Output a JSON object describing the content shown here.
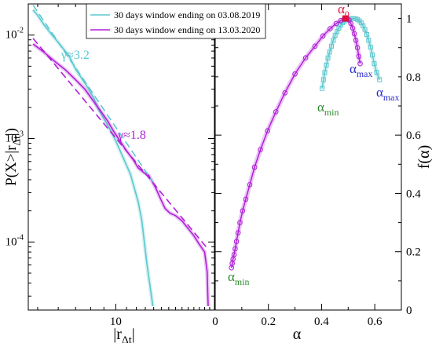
{
  "colors": {
    "cyan": "#5bc8d0",
    "magenta": "#b020d8",
    "green": "#2e8b2e",
    "blue": "#2b2bd0",
    "red": "#e0103a"
  },
  "legend": [
    {
      "label": "30 days window ending on 03.08.2019",
      "color": "#5bc8d0"
    },
    {
      "label": "30 days window ending on 13.03.2020",
      "color": "#b020d8"
    }
  ],
  "chart_data": [
    {
      "type": "line",
      "xscale": "log",
      "yscale": "log",
      "xlabel": "|r",
      "xlabel_sub": "Δt",
      "xlabel_end": "|",
      "ylabel": "P(X>|r",
      "ylabel_sub": "Δt",
      "ylabel_end": "|)",
      "xlim": [
        4.6,
        24
      ],
      "ylim": [
        2.2e-05,
        0.02
      ],
      "xticks": [
        10
      ],
      "yticks": [
        {
          "value": 0.01,
          "base": "10",
          "exp": "-2"
        },
        {
          "value": 0.001,
          "base": "10",
          "exp": "-3"
        },
        {
          "value": 0.0001,
          "base": "10",
          "exp": "-4"
        }
      ],
      "annotations": [
        {
          "text": "γ≈3.2",
          "color": "#5bc8d0"
        },
        {
          "text": "γ≈1.8",
          "color": "#b020d8"
        }
      ],
      "series": [
        {
          "color": "#5bc8d0",
          "points": [
            [
              4.8,
              0.0175
            ],
            [
              5.0,
              0.0155
            ],
            [
              5.3,
              0.0125
            ],
            [
              5.6,
              0.0105
            ],
            [
              6.0,
              0.0085
            ],
            [
              6.3,
              0.0073
            ],
            [
              6.6,
              0.0063
            ],
            [
              7.0,
              0.0047
            ],
            [
              7.4,
              0.0038
            ],
            [
              7.8,
              0.0031
            ],
            [
              8.2,
              0.0025
            ],
            [
              8.6,
              0.0019
            ],
            [
              9.0,
              0.00155
            ],
            [
              9.5,
              0.00122
            ],
            [
              10.0,
              0.00095
            ],
            [
              10.5,
              0.00072
            ],
            [
              11.0,
              0.00055
            ],
            [
              11.4,
              0.00045
            ],
            [
              11.8,
              0.00033
            ],
            [
              12.2,
              0.000245
            ],
            [
              12.6,
              0.00016
            ],
            [
              12.9,
              9.8e-05
            ],
            [
              13.2,
              6e-05
            ],
            [
              13.5,
              4e-05
            ],
            [
              13.9,
              2.4e-05
            ]
          ]
        },
        {
          "color": "#b020d8",
          "points": [
            [
              4.8,
              0.0082
            ],
            [
              5.3,
              0.0068
            ],
            [
              5.8,
              0.0056
            ],
            [
              6.4,
              0.0046
            ],
            [
              7.0,
              0.0037
            ],
            [
              7.6,
              0.003
            ],
            [
              8.2,
              0.0023
            ],
            [
              8.8,
              0.0018
            ],
            [
              9.3,
              0.00148
            ],
            [
              9.8,
              0.00118
            ],
            [
              10.4,
              0.00094
            ],
            [
              11.0,
              0.00076
            ],
            [
              11.7,
              0.00062
            ],
            [
              12.2,
              0.00052
            ],
            [
              12.8,
              0.00047
            ],
            [
              13.4,
              0.00044
            ],
            [
              14.2,
              0.00034
            ],
            [
              15.0,
              0.00025
            ],
            [
              15.5,
              0.00021
            ],
            [
              16.2,
              0.00019
            ],
            [
              17.0,
              0.00018
            ],
            [
              18.0,
              0.00016
            ],
            [
              19.0,
              0.000135
            ],
            [
              20.0,
              0.000115
            ],
            [
              21.0,
              9.5e-05
            ],
            [
              22.0,
              8e-05
            ],
            [
              22.5,
              5.2e-05
            ],
            [
              22.7,
              2.4e-05
            ]
          ]
        }
      ],
      "fits": [
        {
          "color": "#5bc8d0",
          "dashed": true,
          "points": [
            [
              4.8,
              0.0195
            ],
            [
              13.9,
              0.00038
            ]
          ]
        },
        {
          "color": "#b020d8",
          "dashed": true,
          "points": [
            [
              4.8,
              0.0093
            ],
            [
              22.7,
              8.5e-05
            ]
          ]
        }
      ]
    },
    {
      "type": "line",
      "xlabel": "α",
      "ylabel": "f(α)",
      "xlim": [
        0,
        0.7
      ],
      "ylim": [
        0,
        1.05
      ],
      "xticks": [
        0,
        0.2,
        0.4,
        0.6
      ],
      "yticks": [
        0,
        0.2,
        0.4,
        0.6,
        0.8,
        1
      ],
      "xtick_labels": [
        "0",
        "0.2",
        "0.4",
        "0.6"
      ],
      "ytick_labels": [
        "0",
        "0.2",
        "0.4",
        "0.6",
        "0.8",
        "1"
      ],
      "annotations": [
        {
          "text": "α",
          "sub": "0",
          "color": "#e0103a"
        },
        {
          "text": "α",
          "sub": "min",
          "color": "#2e8b2e"
        },
        {
          "text": "α",
          "sub": "max",
          "color": "#2b2bd0"
        },
        {
          "text": "α",
          "sub": "min",
          "color": "#2e8b2e"
        },
        {
          "text": "α",
          "sub": "max",
          "color": "#2b2bd0"
        }
      ],
      "series": [
        {
          "color": "#5bc8d0",
          "marker": "square",
          "points": [
            [
              0.402,
              0.76
            ],
            [
              0.407,
              0.79
            ],
            [
              0.412,
              0.815
            ],
            [
              0.418,
              0.84
            ],
            [
              0.424,
              0.865
            ],
            [
              0.43,
              0.885
            ],
            [
              0.437,
              0.905
            ],
            [
              0.444,
              0.925
            ],
            [
              0.451,
              0.942
            ],
            [
              0.458,
              0.955
            ],
            [
              0.465,
              0.967
            ],
            [
              0.472,
              0.977
            ],
            [
              0.479,
              0.985
            ],
            [
              0.486,
              0.991
            ],
            [
              0.493,
              0.995
            ],
            [
              0.5,
              0.998
            ],
            [
              0.507,
              1.0
            ],
            [
              0.514,
              1.0
            ],
            [
              0.521,
              1.0
            ],
            [
              0.528,
              0.999
            ],
            [
              0.535,
              0.997
            ],
            [
              0.542,
              0.992
            ],
            [
              0.549,
              0.985
            ],
            [
              0.556,
              0.975
            ],
            [
              0.563,
              0.962
            ],
            [
              0.57,
              0.945
            ],
            [
              0.577,
              0.925
            ],
            [
              0.584,
              0.902
            ],
            [
              0.591,
              0.875
            ],
            [
              0.598,
              0.845
            ],
            [
              0.607,
              0.815
            ],
            [
              0.618,
              0.79
            ]
          ]
        },
        {
          "color": "#b020d8",
          "marker": "circle",
          "points": [
            [
              0.061,
              0.145
            ],
            [
              0.064,
              0.16
            ],
            [
              0.067,
              0.175
            ],
            [
              0.071,
              0.19
            ],
            [
              0.075,
              0.21
            ],
            [
              0.08,
              0.235
            ],
            [
              0.086,
              0.265
            ],
            [
              0.093,
              0.3
            ],
            [
              0.103,
              0.34
            ],
            [
              0.115,
              0.38
            ],
            [
              0.13,
              0.43
            ],
            [
              0.148,
              0.49
            ],
            [
              0.17,
              0.55
            ],
            [
              0.197,
              0.615
            ],
            [
              0.228,
              0.68
            ],
            [
              0.262,
              0.745
            ],
            [
              0.3,
              0.81
            ],
            [
              0.34,
              0.865
            ],
            [
              0.375,
              0.905
            ],
            [
              0.405,
              0.94
            ],
            [
              0.432,
              0.965
            ],
            [
              0.455,
              0.983
            ],
            [
              0.472,
              0.993
            ],
            [
              0.485,
              0.998
            ],
            [
              0.495,
              1.0
            ],
            [
              0.503,
              0.995
            ],
            [
              0.51,
              0.983
            ],
            [
              0.517,
              0.967
            ],
            [
              0.523,
              0.948
            ],
            [
              0.529,
              0.925
            ],
            [
              0.535,
              0.9
            ],
            [
              0.54,
              0.87
            ],
            [
              0.545,
              0.845
            ]
          ]
        }
      ],
      "highlight_point": {
        "x": 0.49,
        "y": 1.0,
        "color": "#e0103a"
      }
    }
  ]
}
